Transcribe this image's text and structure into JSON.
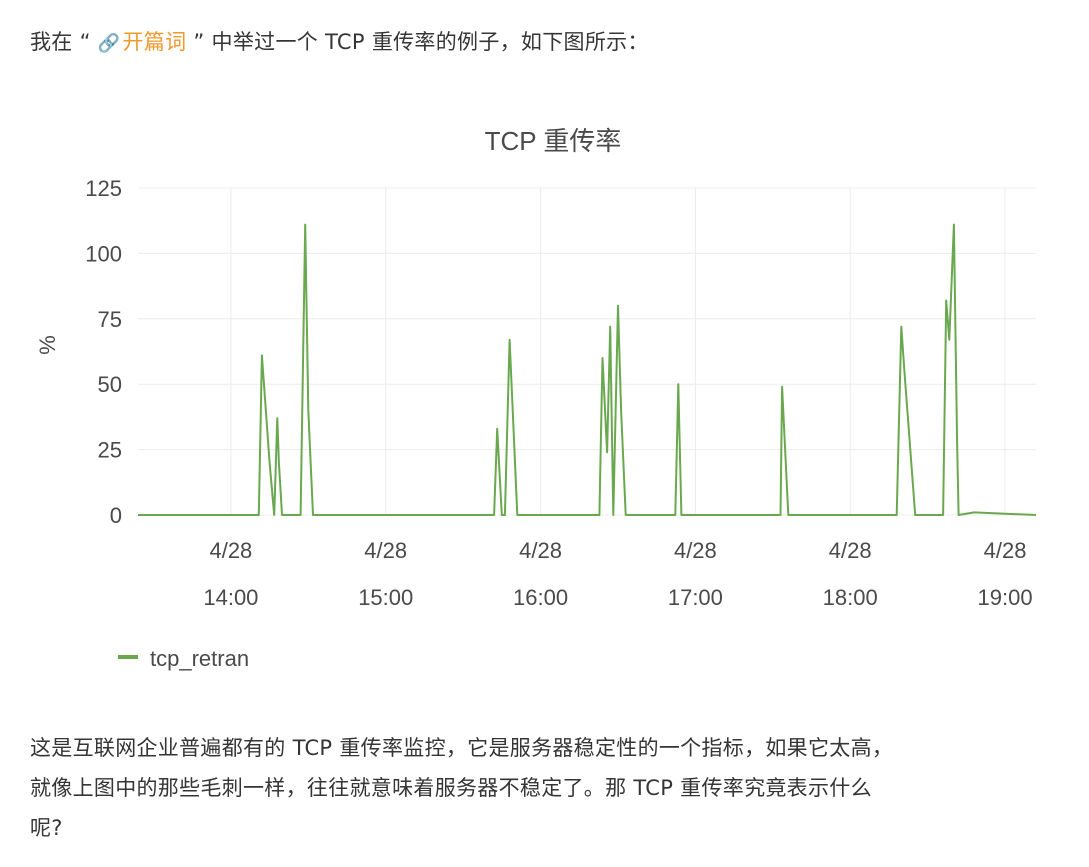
{
  "intro": {
    "prefix": "我在",
    "quote_open": "“",
    "link_icon": "🔗",
    "link_text": "开篇词",
    "quote_close": "”",
    "suffix": "中举过一个 TCP 重传率的例子，如下图所示："
  },
  "outro": {
    "line1": "这是互联网企业普遍都有的 TCP 重传率监控，它是服务器稳定性的一个指标，如果它太高，",
    "line2": "就像上图中的那些毛刺一样，往往就意味着服务器不稳定了。那 TCP 重传率究竟表示什么",
    "line3": "呢?"
  },
  "chart_data": {
    "type": "line",
    "title": "TCP 重传率",
    "ylabel": "%",
    "xlabel": "",
    "ylim": [
      0,
      125
    ],
    "yticks": [
      0,
      25,
      50,
      75,
      100,
      125
    ],
    "xlim_minutes": [
      13.4,
      19.2
    ],
    "xticks": [
      {
        "hour": 14,
        "date": "4/28",
        "time": "14:00"
      },
      {
        "hour": 15,
        "date": "4/28",
        "time": "15:00"
      },
      {
        "hour": 16,
        "date": "4/28",
        "time": "16:00"
      },
      {
        "hour": 17,
        "date": "4/28",
        "time": "17:00"
      },
      {
        "hour": 18,
        "date": "4/28",
        "time": "18:00"
      },
      {
        "hour": 19,
        "date": "4/28",
        "time": "19:00"
      }
    ],
    "grid": true,
    "legend_position": "bottom-left",
    "series_color": "#6aa84f",
    "series": [
      {
        "name": "tcp_retran",
        "x": [
          13.4,
          14.18,
          14.2,
          14.25,
          14.28,
          14.3,
          14.31,
          14.33,
          14.36,
          14.45,
          14.48,
          14.5,
          14.53,
          15.7,
          15.72,
          15.75,
          15.77,
          15.8,
          15.85,
          16.38,
          16.4,
          16.43,
          16.45,
          16.47,
          16.5,
          16.52,
          16.55,
          16.87,
          16.89,
          16.91,
          17.55,
          17.56,
          17.6,
          18.3,
          18.33,
          18.35,
          18.42,
          18.6,
          18.62,
          18.64,
          18.67,
          18.69,
          18.7,
          18.8,
          19.2
        ],
        "y": [
          0,
          0,
          61,
          20,
          0,
          37,
          20,
          0,
          0,
          0,
          111,
          40,
          0,
          0,
          33,
          0,
          0,
          67,
          0,
          0,
          60,
          24,
          72,
          0,
          80,
          40,
          0,
          0,
          50,
          0,
          0,
          49,
          0,
          0,
          72,
          55,
          0,
          0,
          82,
          67,
          111,
          30,
          0,
          1,
          0
        ]
      }
    ]
  }
}
